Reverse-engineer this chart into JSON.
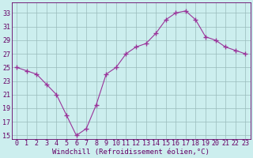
{
  "x": [
    0,
    1,
    2,
    3,
    4,
    5,
    6,
    7,
    8,
    9,
    10,
    11,
    12,
    13,
    14,
    15,
    16,
    17,
    18,
    19,
    20,
    21,
    22,
    23
  ],
  "y": [
    25,
    24.5,
    24,
    22.5,
    21,
    18,
    15,
    16,
    19.5,
    24,
    25,
    27,
    28,
    28.5,
    30,
    32,
    33,
    33.3,
    32,
    29.5,
    29,
    28,
    27.5,
    27
  ],
  "line_color": "#993399",
  "marker_color": "#993399",
  "bg_color": "#cceeee",
  "grid_color": "#99bbbb",
  "xlabel": "Windchill (Refroidissement éolien,°C)",
  "yticks": [
    15,
    17,
    19,
    21,
    23,
    25,
    27,
    29,
    31,
    33
  ],
  "xtick_labels": [
    "0",
    "1",
    "2",
    "3",
    "4",
    "5",
    "6",
    "7",
    "8",
    "9",
    "10",
    "11",
    "12",
    "13",
    "14",
    "15",
    "16",
    "17",
    "18",
    "19",
    "20",
    "21",
    "22",
    "23"
  ],
  "xticks": [
    0,
    1,
    2,
    3,
    4,
    5,
    6,
    7,
    8,
    9,
    10,
    11,
    12,
    13,
    14,
    15,
    16,
    17,
    18,
    19,
    20,
    21,
    22,
    23
  ],
  "ylim": [
    14.5,
    34.5
  ],
  "xlim": [
    -0.5,
    23.5
  ],
  "label_color": "#660066",
  "tick_color": "#660066",
  "font_size_xlabel": 6.5,
  "font_size_ticks": 6.0
}
